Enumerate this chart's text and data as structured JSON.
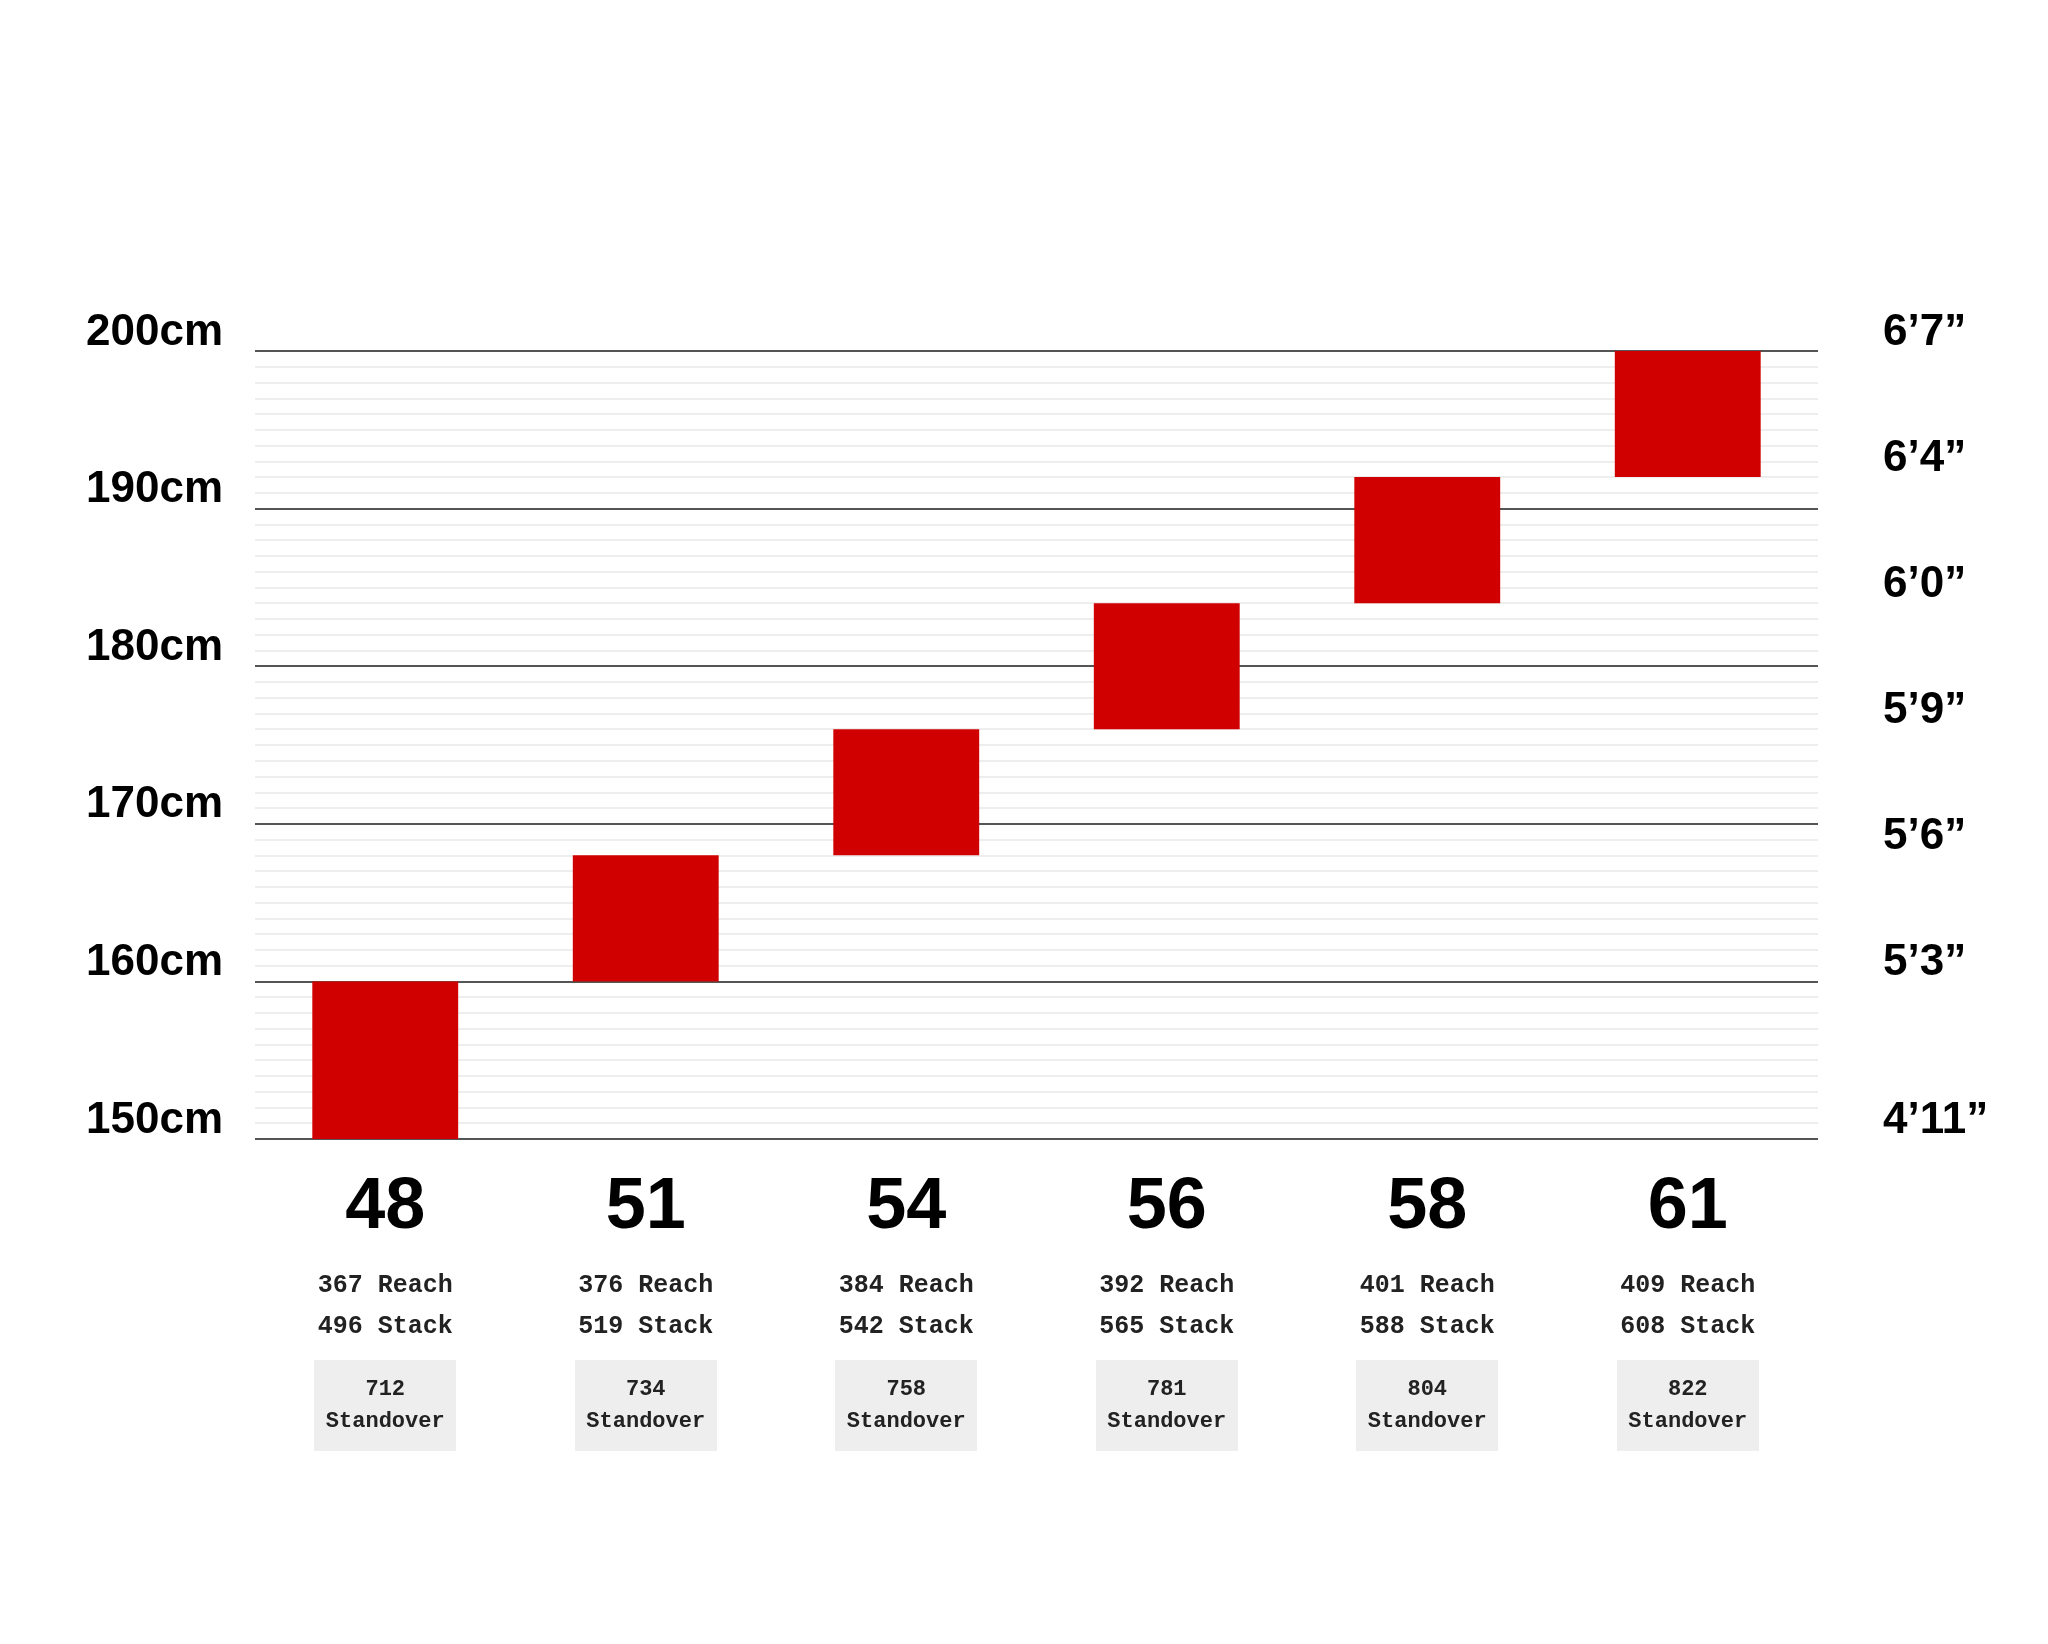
{
  "chart_data": {
    "type": "bar",
    "categories": [
      "48",
      "51",
      "54",
      "56",
      "58",
      "61"
    ],
    "values": [
      10,
      8,
      8,
      8,
      8,
      8
    ],
    "base": [
      150,
      160,
      168,
      176,
      184,
      192
    ],
    "color": "#d10000",
    "ylim": [
      150,
      200
    ],
    "yticks": [
      {
        "value": 150,
        "label": "150cm"
      },
      {
        "value": 151,
        "label": null
      },
      {
        "value": 152,
        "label": null
      },
      {
        "value": 153,
        "label": null
      },
      {
        "value": 154,
        "label": null
      },
      {
        "value": 155,
        "label": null
      },
      {
        "value": 156,
        "label": null
      },
      {
        "value": 157,
        "label": null
      },
      {
        "value": 158,
        "label": null
      },
      {
        "value": 159,
        "label": null
      },
      {
        "value": 160,
        "label": "160cm"
      },
      {
        "value": 161,
        "label": null
      },
      {
        "value": 162,
        "label": null
      },
      {
        "value": 163,
        "label": null
      },
      {
        "value": 164,
        "label": null
      },
      {
        "value": 165,
        "label": null
      },
      {
        "value": 166,
        "label": null
      },
      {
        "value": 167,
        "label": null
      },
      {
        "value": 168,
        "label": null
      },
      {
        "value": 169,
        "label": null
      },
      {
        "value": 170,
        "label": "170cm"
      },
      {
        "value": 171,
        "label": null
      },
      {
        "value": 172,
        "label": null
      },
      {
        "value": 173,
        "label": null
      },
      {
        "value": 174,
        "label": null
      },
      {
        "value": 175,
        "label": null
      },
      {
        "value": 176,
        "label": null
      },
      {
        "value": 177,
        "label": null
      },
      {
        "value": 178,
        "label": null
      },
      {
        "value": 179,
        "label": null
      },
      {
        "value": 180,
        "label": "180cm"
      },
      {
        "value": 181,
        "label": null
      },
      {
        "value": 182,
        "label": null
      },
      {
        "value": 183,
        "label": null
      },
      {
        "value": 184,
        "label": null
      },
      {
        "value": 185,
        "label": null
      },
      {
        "value": 186,
        "label": null
      },
      {
        "value": 187,
        "label": null
      },
      {
        "value": 188,
        "label": null
      },
      {
        "value": 189,
        "label": null
      },
      {
        "value": 190,
        "label": "190cm"
      },
      {
        "value": 191,
        "label": null
      },
      {
        "value": 192,
        "label": null
      },
      {
        "value": 193,
        "label": null
      },
      {
        "value": 194,
        "label": null
      },
      {
        "value": 195,
        "label": null
      },
      {
        "value": 196,
        "label": null
      },
      {
        "value": 197,
        "label": null
      },
      {
        "value": 198,
        "label": null
      },
      {
        "value": 199,
        "label": null
      },
      {
        "value": 200,
        "label": "200cm"
      }
    ],
    "y2_categories": [
      "6’7”",
      null,
      null,
      null,
      "6’4”",
      null,
      null,
      null,
      "6’0”",
      null,
      null,
      null,
      "5’9”",
      null,
      null,
      null,
      "5’6”",
      null,
      null,
      null,
      "5’3”",
      null,
      null,
      null,
      null,
      "4’11”"
    ],
    "grid": "y",
    "annotations": [
      "367 Reach",
      "496 Stack",
      "712 Standover",
      "376 Reach",
      "519 Stack",
      "734 Standover",
      "384 Reach",
      "542 Stack",
      "758 Standover",
      "392 Reach",
      "565 Stack",
      "781 Standover",
      "401 Reach",
      "588 Stack",
      "804 Standover",
      "409 Reach",
      "608 Stack",
      "822 Standover"
    ]
  }
}
